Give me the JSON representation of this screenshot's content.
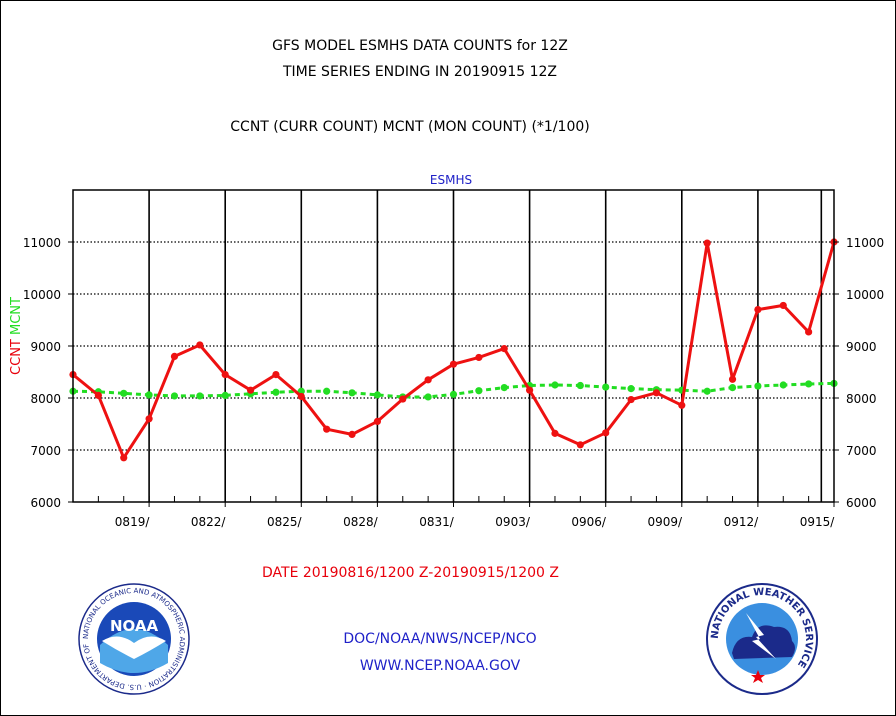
{
  "header": {
    "title_line1": "GFS MODEL ESMHS DATA COUNTS for 12Z",
    "title_line2": "TIME SERIES ENDING IN 20190915 12Z",
    "subtitle": "CCNT (CURR COUNT) MCNT (MON COUNT) (*1/100)"
  },
  "footer": {
    "date_range": "DATE 20190816/1200 Z-20190915/1200 Z",
    "org_line": "DOC/NOAA/NWS/NCEP/NCO",
    "url_line": "WWW.NCEP.NOAA.GOV"
  },
  "logos": {
    "left_text": "NOAA",
    "left_ring_text": "NATIONAL OCEANIC AND ATMOSPHERIC ADMINISTRATION · U.S. DEPARTMENT OF COMMERCE ·",
    "right_ring_text": "NATIONAL WEATHER SERVICE"
  },
  "colors": {
    "ccnt": "#ee1111",
    "mcnt": "#22dd22",
    "text_red": "#e8000b",
    "text_blue": "#1f21c8"
  },
  "chart_data": {
    "type": "line",
    "title": "ESMHS",
    "ylabel_parts": [
      {
        "text": "CCNT",
        "color": "#e8000b"
      },
      {
        "text": "MCNT",
        "color": "#22dd22"
      }
    ],
    "xlabel": "DATE 20190816/1200 Z-20190915/1200 Z",
    "x_day_range": [
      16,
      46
    ],
    "ylim": [
      6000,
      12000
    ],
    "yticks": [
      6000,
      7000,
      8000,
      9000,
      10000,
      11000
    ],
    "ytick_labels": [
      "6000",
      "7000",
      "8000",
      "9000",
      "10000",
      "11000"
    ],
    "xticks": [
      {
        "day": 19,
        "label": "0819/"
      },
      {
        "day": 22,
        "label": "0822/"
      },
      {
        "day": 25,
        "label": "0825/"
      },
      {
        "day": 28,
        "label": "0828/"
      },
      {
        "day": 31,
        "label": "0831/"
      },
      {
        "day": 34,
        "label": "0903/"
      },
      {
        "day": 37,
        "label": "0906/"
      },
      {
        "day": 40,
        "label": "0909/"
      },
      {
        "day": 43,
        "label": "0912/"
      },
      {
        "day": 46,
        "label": "0915/"
      }
    ],
    "grid": true,
    "x_day_extra_vline": 45.5,
    "series": [
      {
        "name": "CCNT",
        "color": "#ee1111",
        "style": "solid",
        "x": [
          16,
          17,
          18,
          19,
          20,
          21,
          22,
          23,
          24,
          25,
          26,
          27,
          28,
          29,
          30,
          31,
          32,
          33,
          34,
          35,
          36,
          37,
          38,
          39,
          40,
          41,
          42,
          43,
          44,
          45,
          46
        ],
        "values": [
          8450,
          8050,
          6850,
          7600,
          8800,
          9020,
          8450,
          8150,
          8450,
          8030,
          7400,
          7300,
          7550,
          7980,
          8350,
          8650,
          8780,
          8950,
          8150,
          7320,
          7100,
          7330,
          7970,
          8100,
          7860,
          10980,
          8360,
          9700,
          9780,
          9270,
          11000
        ]
      },
      {
        "name": "MCNT",
        "color": "#22dd22",
        "style": "dashed",
        "x": [
          16,
          17,
          18,
          19,
          20,
          21,
          22,
          23,
          24,
          25,
          26,
          27,
          28,
          29,
          30,
          31,
          32,
          33,
          34,
          35,
          36,
          37,
          38,
          39,
          40,
          41,
          42,
          43,
          44,
          45,
          46
        ],
        "values": [
          8130,
          8120,
          8090,
          8060,
          8040,
          8040,
          8050,
          8080,
          8110,
          8130,
          8130,
          8100,
          8060,
          8020,
          8020,
          8070,
          8140,
          8200,
          8240,
          8250,
          8240,
          8210,
          8180,
          8160,
          8150,
          8130,
          8200,
          8230,
          8250,
          8270,
          8280
        ]
      }
    ]
  }
}
